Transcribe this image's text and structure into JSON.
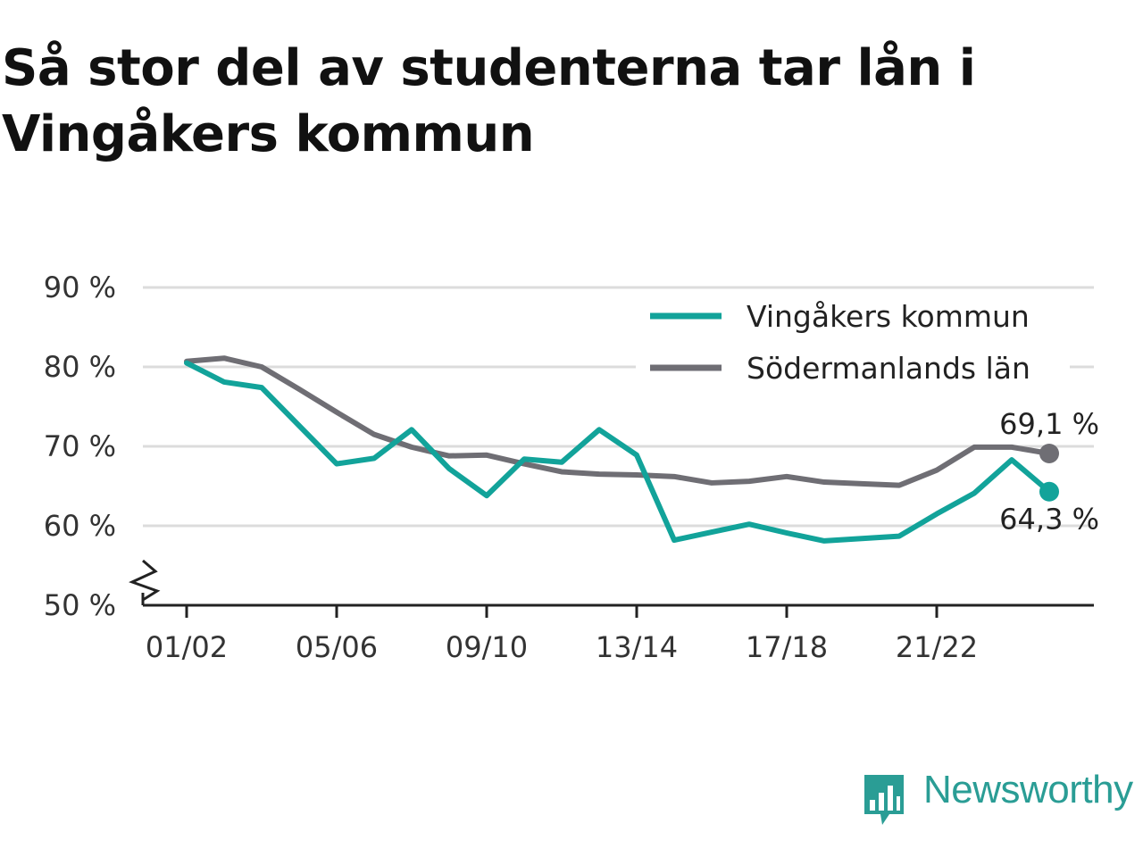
{
  "title": "Så stor del av studenterna tar lån i Vingåkers kommun",
  "brand": {
    "name": "Newsworthy",
    "color": "#2a9d95",
    "icon": "bar-chart-bubble-icon"
  },
  "chart_data": {
    "type": "line",
    "title": "Så stor del av studenterna tar lån i Vingåkers kommun",
    "xlabel": "",
    "ylabel": "",
    "ylim": [
      50,
      90
    ],
    "y_axis_break": true,
    "y_ticks": [
      50,
      60,
      70,
      80,
      90
    ],
    "y_tick_labels": [
      "50 %",
      "60 %",
      "70 %",
      "80 %",
      "90 %"
    ],
    "grid": true,
    "legend_position": "top-right",
    "categories": [
      "01/02",
      "02/03",
      "03/04",
      "04/05",
      "05/06",
      "06/07",
      "07/08",
      "08/09",
      "09/10",
      "10/11",
      "11/12",
      "12/13",
      "13/14",
      "14/15",
      "15/16",
      "16/17",
      "17/18",
      "18/19",
      "19/20",
      "20/21",
      "21/22",
      "22/23",
      "23/24",
      "24/25"
    ],
    "x_tick_labels": [
      "01/02",
      "05/06",
      "09/10",
      "13/14",
      "17/18",
      "21/22"
    ],
    "series": [
      {
        "name": "Vingåkers kommun",
        "color": "#12a39a",
        "values": [
          80.5,
          78.1,
          77.4,
          72.6,
          67.8,
          68.5,
          72.1,
          67.2,
          63.8,
          68.4,
          68.0,
          72.1,
          68.9,
          58.2,
          59.2,
          60.2,
          59.1,
          58.1,
          58.4,
          58.7,
          61.5,
          64.1,
          68.3,
          64.3
        ],
        "end_label": "64,3 %"
      },
      {
        "name": "Södermanlands län",
        "color": "#6f6e74",
        "values": [
          80.7,
          81.1,
          80.0,
          77.2,
          74.3,
          71.5,
          69.9,
          68.8,
          68.9,
          67.8,
          66.8,
          66.5,
          66.4,
          66.2,
          65.4,
          65.6,
          66.2,
          65.5,
          65.3,
          65.1,
          67.0,
          69.9,
          69.9,
          69.1
        ],
        "end_label": "69,1 %"
      }
    ]
  }
}
